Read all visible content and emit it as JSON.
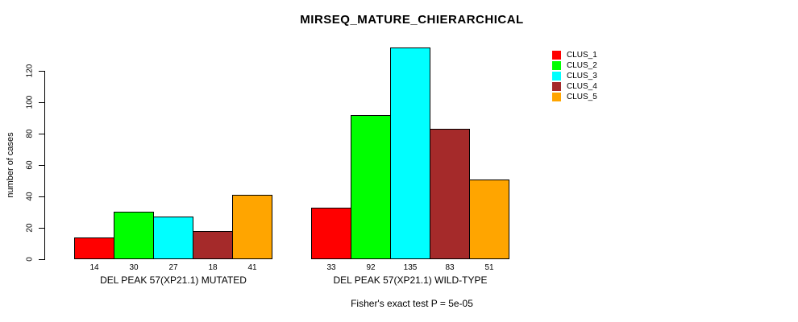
{
  "chart_data": {
    "type": "bar",
    "title": "MIRSEQ_MATURE_CHIERARCHICAL",
    "ylabel": "number of cases",
    "yticks": [
      0,
      20,
      40,
      60,
      80,
      100,
      120
    ],
    "ylim": [
      0,
      139
    ],
    "grid": false,
    "legend_position": "right",
    "categories": [
      "DEL PEAK 57(XP21.1) MUTATED",
      "DEL PEAK 57(XP21.1) WILD-TYPE"
    ],
    "series": [
      {
        "name": "CLUS_1",
        "color": "#ff0000",
        "values": [
          14,
          33
        ]
      },
      {
        "name": "CLUS_2",
        "color": "#00ff00",
        "values": [
          30,
          92
        ]
      },
      {
        "name": "CLUS_3",
        "color": "#00ffff",
        "values": [
          27,
          135
        ]
      },
      {
        "name": "CLUS_4",
        "color": "#a52a2a",
        "values": [
          18,
          83
        ]
      },
      {
        "name": "CLUS_5",
        "color": "#ffa500",
        "values": [
          41,
          51
        ]
      }
    ],
    "bar_value_labels": [
      [
        14,
        30,
        27,
        18,
        41
      ],
      [
        33,
        92,
        135,
        83,
        51
      ]
    ],
    "annotation": "Fisher's exact test P = 5e-05"
  },
  "colors": {
    "background": "#ffffff",
    "axis": "#000000",
    "text": "#000000"
  }
}
